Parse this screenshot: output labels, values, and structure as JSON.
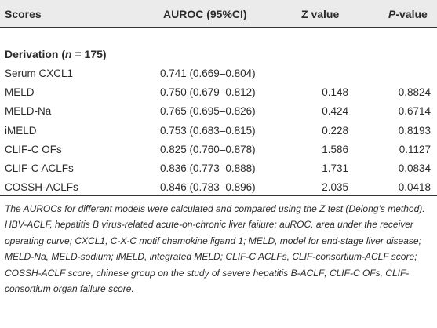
{
  "header": {
    "scores": "Scores",
    "auroc": "AUROC (95%CI)",
    "z_value": "Z value",
    "p_value_italic": "P",
    "p_value_rest": "-value"
  },
  "section": {
    "label_prefix": "Derivation (",
    "label_n": "n",
    "label_suffix": " = 175)"
  },
  "rows": [
    {
      "name": "Serum CXCL1",
      "auroc": "0.741 (0.669–0.804)",
      "z": "",
      "p": ""
    },
    {
      "name": "MELD",
      "auroc": "0.750 (0.679–0.812)",
      "z": "0.148",
      "p": "0.8824"
    },
    {
      "name": "MELD-Na",
      "auroc": "0.765 (0.695–0.826)",
      "z": "0.424",
      "p": "0.6714"
    },
    {
      "name": "iMELD",
      "auroc": "0.753 (0.683–0.815)",
      "z": "0.228",
      "p": "0.8193"
    },
    {
      "name": "CLIF-C OFs",
      "auroc": "0.825 (0.760–0.878)",
      "z": "1.586",
      "p": "0.1127"
    },
    {
      "name": "CLIF-C ACLFs",
      "auroc": "0.836 (0.773–0.888)",
      "z": "1.731",
      "p": "0.0834"
    },
    {
      "name": "COSSH-ACLFs",
      "auroc": "0.846 (0.783–0.896)",
      "z": "2.035",
      "p": "0.0418"
    }
  ],
  "footnote": "The AUROCs for different models were calculated and compared using the Z test (Delong’s method). HBV-ACLF, hepatitis B virus-related acute-on-chronic liver failure; auROC, area under the receiver operating curve; CXCL1, C-X-C motif chemokine ligand 1; MELD, model for end-stage liver disease; MELD-Na, MELD-sodium; iMELD, integrated MELD; CLIF-C ACLFs, CLIF-consortium-ACLF score; COSSH-ACLF score, chinese group on the study of severe hepatitis B-ACLF; CLIF-C OFs, CLIF-consortium organ failure score."
}
